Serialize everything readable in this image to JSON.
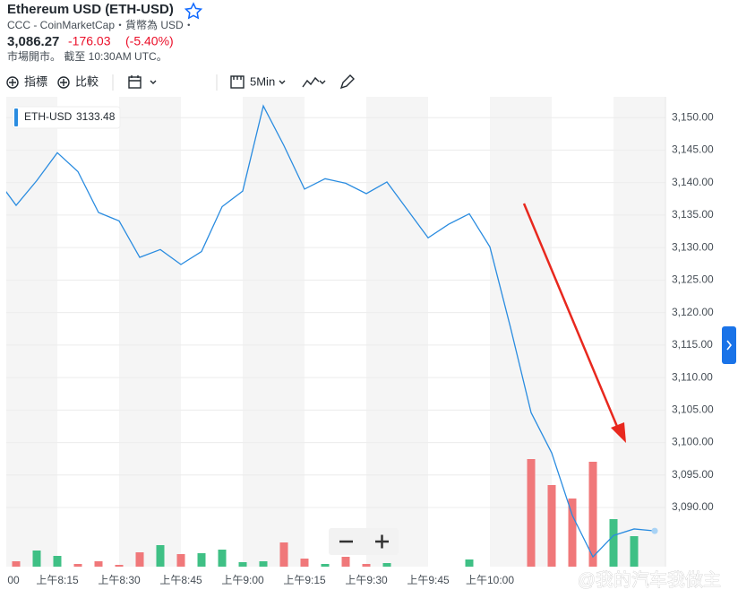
{
  "header": {
    "title": "Ethereum USD (ETH-USD)",
    "source": "CCC - CoinMarketCap・貨幣為 USD・",
    "price": "3,086.27",
    "change": "-176.03",
    "change_percent": "(-5.40%)",
    "status": "市場開市。 截至 10:30AM UTC。"
  },
  "toolbar": {
    "indicators": "指標",
    "compare": "比較",
    "interval": "5Min"
  },
  "watermark": "@我的汽车我做主",
  "chart_data": {
    "type": "line",
    "categories": [
      "00",
      null,
      null,
      "上午8:15",
      null,
      null,
      "上午8:30",
      null,
      null,
      "上午8:45",
      null,
      null,
      "上午9:00",
      null,
      null,
      "上午9:15",
      null,
      null,
      "上午9:30",
      null,
      null,
      "上午9:45",
      null,
      null,
      "上午10:00",
      null,
      null,
      null,
      null,
      null,
      null,
      null,
      null
    ],
    "series": [
      {
        "name": "ETH-USD",
        "legend_value": 3133.48,
        "color": "#2a8ce0",
        "values": [
          3140.8,
          3136.5,
          3140.3,
          3144.6,
          3141.7,
          3135.4,
          3134.1,
          3128.5,
          3129.7,
          3127.4,
          3129.4,
          3136.3,
          3138.7,
          3151.8,
          3145.7,
          3139.0,
          3140.6,
          3139.9,
          3138.3,
          3140.1,
          3135.8,
          3131.5,
          3133.6,
          3135.2,
          3130.1,
          3117.7,
          3104.6,
          3098.4,
          3088.8,
          3082.4,
          3085.7,
          3086.7,
          3086.4
        ]
      }
    ],
    "volume": {
      "values": [
        0,
        6,
        18,
        12,
        3,
        6,
        2,
        16,
        24,
        14,
        15,
        19,
        5,
        6,
        27,
        9,
        3,
        11,
        3,
        4,
        0,
        0,
        0,
        8,
        0,
        0,
        120,
        91,
        76,
        117,
        53,
        34,
        0
      ],
      "vlim": [
        0,
        140
      ],
      "up_color": "#3fc085",
      "down_color": "#f0787a"
    },
    "ylim": [
      3080.9,
      3153.2
    ],
    "yticks": [
      {
        "value": 3150,
        "label": "3,150.00"
      },
      {
        "value": 3145,
        "label": "3,145.00"
      },
      {
        "value": 3140,
        "label": "3,140.00"
      },
      {
        "value": 3135,
        "label": "3,135.00"
      },
      {
        "value": 3130,
        "label": "3,130.00"
      },
      {
        "value": 3125,
        "label": "3,125.00"
      },
      {
        "value": 3120,
        "label": "3,120.00"
      },
      {
        "value": 3115,
        "label": "3,115.00"
      },
      {
        "value": 3110,
        "label": "3,110.00"
      },
      {
        "value": 3105,
        "label": "3,105.00"
      },
      {
        "value": 3100,
        "label": "3,100.00"
      },
      {
        "value": 3095,
        "label": "3,095.00"
      },
      {
        "value": 3090,
        "label": "3,090.00"
      }
    ],
    "grid": true
  }
}
